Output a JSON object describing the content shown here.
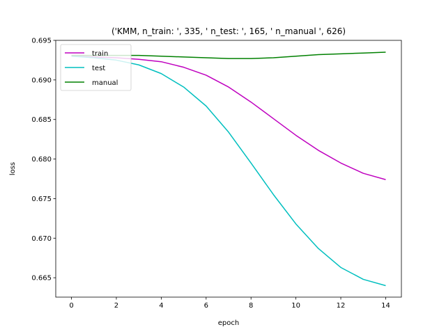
{
  "chart_data": {
    "type": "line",
    "title": "('KMM, n_train: ', 335, ' n_test: ', 165, ' n_manual ', 626)",
    "xlabel": "epoch",
    "ylabel": "loss",
    "xlim": [
      -0.7,
      14.7
    ],
    "ylim": [
      0.66255,
      0.695
    ],
    "xticks": [
      0,
      2,
      4,
      6,
      8,
      10,
      12,
      14
    ],
    "yticks": [
      0.665,
      0.67,
      0.675,
      0.68,
      0.685,
      0.69,
      0.695
    ],
    "grid": false,
    "legend_position": "top-left",
    "x": [
      0,
      1,
      2,
      3,
      4,
      5,
      6,
      7,
      8,
      9,
      10,
      11,
      12,
      13,
      14
    ],
    "series": [
      {
        "name": "train",
        "color": "#bf00bf",
        "values": [
          0.693,
          0.6929,
          0.6928,
          0.6926,
          0.6923,
          0.6916,
          0.6906,
          0.6891,
          0.6872,
          0.6851,
          0.683,
          0.6811,
          0.6795,
          0.6782,
          0.6774
        ]
      },
      {
        "name": "test",
        "color": "#00bfbf",
        "values": [
          0.693,
          0.6928,
          0.6925,
          0.6919,
          0.6908,
          0.6891,
          0.6867,
          0.6834,
          0.6795,
          0.6755,
          0.6718,
          0.6687,
          0.6663,
          0.6648,
          0.664
        ]
      },
      {
        "name": "manual",
        "color": "#008000",
        "values": [
          0.6931,
          0.6931,
          0.6931,
          0.6931,
          0.693,
          0.6929,
          0.6928,
          0.6927,
          0.6927,
          0.6928,
          0.693,
          0.6932,
          0.6933,
          0.6934,
          0.6935
        ]
      }
    ]
  }
}
